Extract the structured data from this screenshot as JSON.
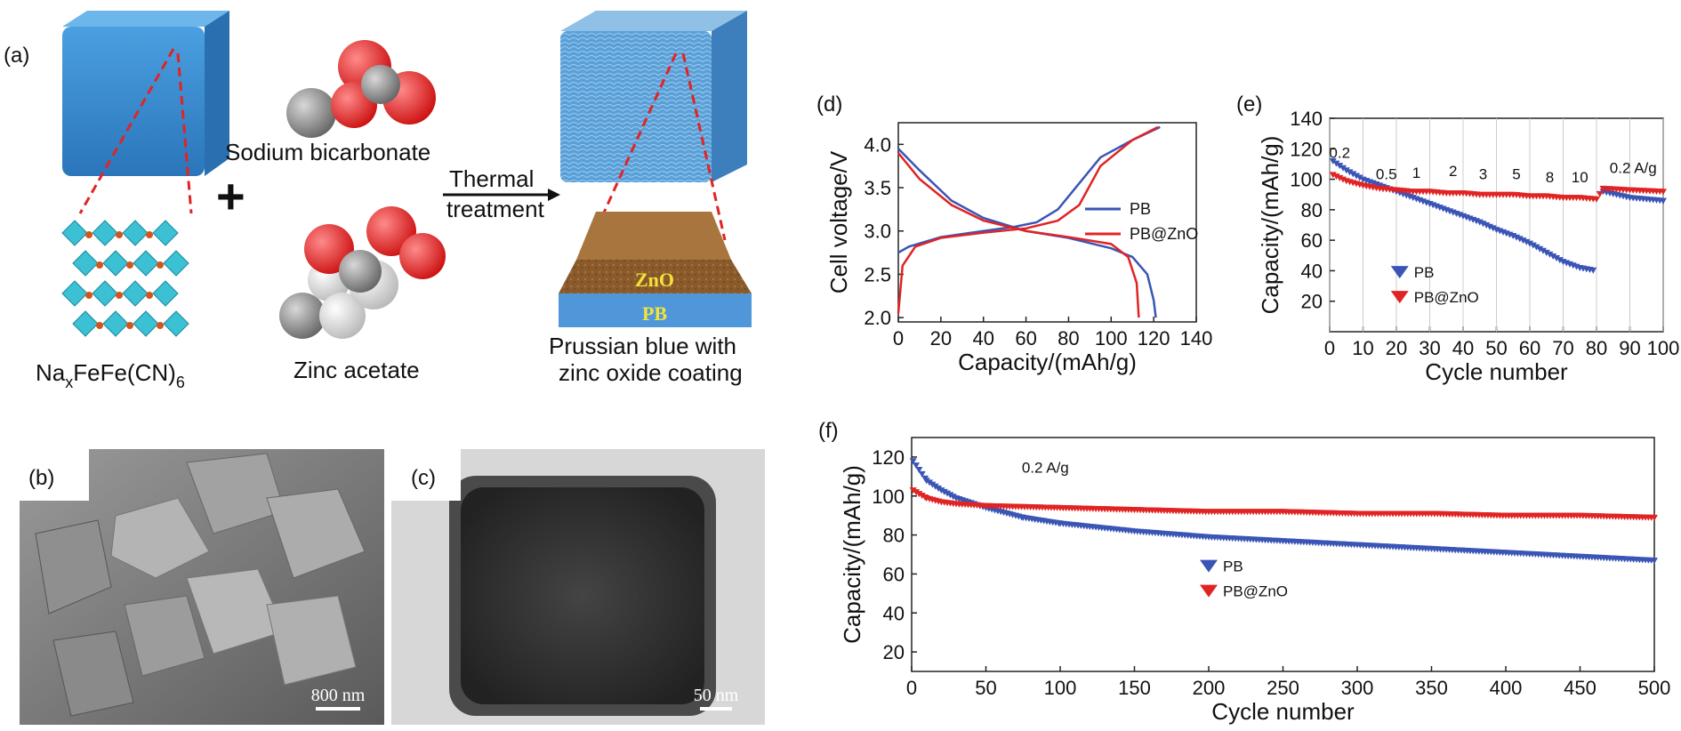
{
  "panel_labels": {
    "a": "(a)",
    "b": "(b)",
    "c": "(c)",
    "d": "(d)",
    "e": "(e)",
    "f": "(f)"
  },
  "schematic": {
    "sodium_bicarbonate": "Sodium bicarbonate",
    "zinc_acetate": "Zinc acetate",
    "plus": "+",
    "arrow_top": "Thermal",
    "arrow_bottom": "treatment",
    "formula": {
      "p1": "Na",
      "sub1": "x",
      "p2": "FeFe(CN)",
      "sub2": "6"
    },
    "product_line1": "Prussian blue with",
    "product_line2": "zinc oxide coating",
    "layer_zno": "ZnO",
    "layer_pb": "PB"
  },
  "micrographs": {
    "b_scale": "800 nm",
    "c_scale": "50 nm"
  },
  "colors": {
    "pb": "#3a55b5",
    "pbzno": "#e02424",
    "cube": "#3f8fd0",
    "coating": "#8a5a2b"
  },
  "chart_data": [
    {
      "id": "d",
      "type": "line",
      "xlabel": "Capacity/(mAh/g)",
      "ylabel": "Cell voltage/V",
      "xlim": [
        0,
        140
      ],
      "ylim": [
        1.95,
        4.25
      ],
      "xticks": [
        0,
        20,
        40,
        60,
        80,
        100,
        120,
        140
      ],
      "yticks": [
        2.0,
        2.5,
        3.0,
        3.5,
        4.0
      ],
      "legend_position": "center-right",
      "series": [
        {
          "name": "PB",
          "color": "#3a55b5",
          "charge": [
            [
              0,
              2.75
            ],
            [
              5,
              2.82
            ],
            [
              20,
              2.93
            ],
            [
              40,
              3.0
            ],
            [
              55,
              3.05
            ],
            [
              65,
              3.1
            ],
            [
              75,
              3.25
            ],
            [
              85,
              3.55
            ],
            [
              95,
              3.85
            ],
            [
              110,
              4.05
            ],
            [
              123,
              4.2
            ]
          ],
          "discharge": [
            [
              0,
              3.95
            ],
            [
              10,
              3.7
            ],
            [
              25,
              3.35
            ],
            [
              40,
              3.15
            ],
            [
              60,
              3.0
            ],
            [
              80,
              2.92
            ],
            [
              100,
              2.8
            ],
            [
              110,
              2.7
            ],
            [
              117,
              2.5
            ],
            [
              120,
              2.2
            ],
            [
              121,
              2.0
            ]
          ]
        },
        {
          "name": "PB@ZnO",
          "color": "#e02424",
          "charge": [
            [
              0,
              2.05
            ],
            [
              2,
              2.6
            ],
            [
              8,
              2.82
            ],
            [
              20,
              2.92
            ],
            [
              40,
              2.98
            ],
            [
              60,
              3.03
            ],
            [
              75,
              3.12
            ],
            [
              85,
              3.3
            ],
            [
              95,
              3.75
            ],
            [
              110,
              4.05
            ],
            [
              122,
              4.2
            ]
          ],
          "discharge": [
            [
              0,
              3.9
            ],
            [
              10,
              3.6
            ],
            [
              25,
              3.3
            ],
            [
              40,
              3.12
            ],
            [
              60,
              3.0
            ],
            [
              80,
              2.93
            ],
            [
              100,
              2.85
            ],
            [
              108,
              2.7
            ],
            [
              112,
              2.4
            ],
            [
              113,
              2.0
            ]
          ]
        }
      ]
    },
    {
      "id": "e",
      "type": "scatter",
      "xlabel": "Cycle number",
      "ylabel": "Capacity/(mAh/g)",
      "xlim": [
        0,
        100
      ],
      "ylim": [
        0,
        140
      ],
      "xticks": [
        0,
        10,
        20,
        30,
        40,
        50,
        60,
        70,
        80,
        90,
        100
      ],
      "yticks": [
        20,
        40,
        60,
        80,
        100,
        120,
        140
      ],
      "legend_position": "bottom-left",
      "rate_labels": [
        {
          "text": "0.2",
          "x": 3,
          "y": 114
        },
        {
          "text": "0.5",
          "x": 17,
          "y": 100
        },
        {
          "text": "1",
          "x": 26,
          "y": 101
        },
        {
          "text": "2",
          "x": 37,
          "y": 102
        },
        {
          "text": "3",
          "x": 46,
          "y": 100
        },
        {
          "text": "5",
          "x": 56,
          "y": 100
        },
        {
          "text": "8",
          "x": 66,
          "y": 98
        },
        {
          "text": "10",
          "x": 75,
          "y": 98
        },
        {
          "text": "0.2 A/g",
          "x": 91,
          "y": 104
        }
      ],
      "series": [
        {
          "name": "PB",
          "color": "#3a55b5",
          "marker": "triangle-down",
          "points": [
            [
              1,
              112
            ],
            [
              5,
              106
            ],
            [
              10,
              100
            ],
            [
              15,
              96
            ],
            [
              20,
              92
            ],
            [
              25,
              88
            ],
            [
              30,
              84
            ],
            [
              35,
              80
            ],
            [
              40,
              76
            ],
            [
              45,
              72
            ],
            [
              50,
              67
            ],
            [
              55,
              63
            ],
            [
              60,
              58
            ],
            [
              65,
              52
            ],
            [
              70,
              46
            ],
            [
              75,
              42
            ],
            [
              80,
              40
            ],
            [
              82,
              92
            ],
            [
              90,
              88
            ],
            [
              100,
              86
            ]
          ]
        },
        {
          "name": "PB@ZnO",
          "color": "#e02424",
          "marker": "triangle-down",
          "points": [
            [
              1,
              103
            ],
            [
              5,
              99
            ],
            [
              10,
              96
            ],
            [
              15,
              94
            ],
            [
              20,
              93
            ],
            [
              25,
              92
            ],
            [
              30,
              92
            ],
            [
              35,
              91
            ],
            [
              40,
              91
            ],
            [
              45,
              90
            ],
            [
              50,
              90
            ],
            [
              55,
              90
            ],
            [
              60,
              89
            ],
            [
              65,
              89
            ],
            [
              70,
              88
            ],
            [
              75,
              88
            ],
            [
              80,
              87
            ],
            [
              82,
              94
            ],
            [
              90,
              93
            ],
            [
              100,
              92
            ]
          ]
        }
      ]
    },
    {
      "id": "f",
      "type": "scatter",
      "xlabel": "Cycle number",
      "ylabel": "Capacity/(mAh/g)",
      "xlim": [
        0,
        500
      ],
      "ylim": [
        10,
        130
      ],
      "xticks": [
        0,
        50,
        100,
        150,
        200,
        250,
        300,
        350,
        400,
        450,
        500
      ],
      "yticks": [
        20,
        40,
        60,
        80,
        100,
        120
      ],
      "annotation": "0.2 A/g",
      "legend_position": "center",
      "series": [
        {
          "name": "PB",
          "color": "#3a55b5",
          "marker": "triangle-down",
          "points": [
            [
              1,
              118
            ],
            [
              10,
              108
            ],
            [
              20,
              103
            ],
            [
              30,
              99
            ],
            [
              50,
              94
            ],
            [
              75,
              89
            ],
            [
              100,
              86
            ],
            [
              150,
              82
            ],
            [
              200,
              79
            ],
            [
              250,
              77
            ],
            [
              300,
              75
            ],
            [
              350,
              73
            ],
            [
              400,
              71
            ],
            [
              450,
              69
            ],
            [
              500,
              67
            ]
          ]
        },
        {
          "name": "PB@ZnO",
          "color": "#e02424",
          "marker": "triangle-down",
          "points": [
            [
              1,
              103
            ],
            [
              10,
              99
            ],
            [
              20,
              97
            ],
            [
              30,
              96
            ],
            [
              50,
              95
            ],
            [
              100,
              94
            ],
            [
              150,
              93
            ],
            [
              200,
              92
            ],
            [
              250,
              92
            ],
            [
              300,
              91
            ],
            [
              350,
              91
            ],
            [
              400,
              90
            ],
            [
              450,
              90
            ],
            [
              500,
              89
            ]
          ]
        }
      ]
    }
  ]
}
